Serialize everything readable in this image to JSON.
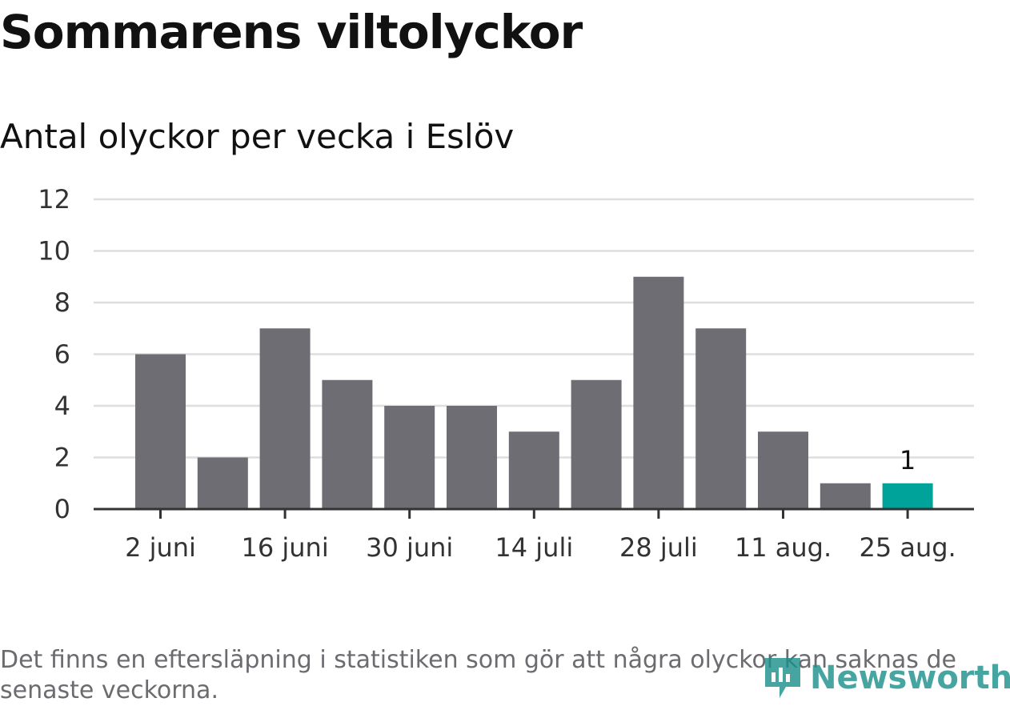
{
  "header": {
    "title": "Sommarens viltolyckor",
    "subtitle": "Antal olyckor per vecka i Eslöv"
  },
  "footer": {
    "note": "Det finns en eftersläpning i statistiken som gör att några olyckor kan saknas de senaste veckorna.",
    "logo_text": "Newsworthy",
    "logo_icon": "newsworthy-logo-icon"
  },
  "chart_data": {
    "type": "bar",
    "title": "Antal olyckor per vecka i Eslöv",
    "xlabel": "",
    "ylabel": "",
    "ylim": [
      0,
      12
    ],
    "yticks": [
      "0",
      "2",
      "4",
      "6",
      "8",
      "10",
      "12"
    ],
    "grid": true,
    "xtick_labels": [
      "2 juni",
      "16 juni",
      "30 juni",
      "14 juli",
      "28 juli",
      "11 aug.",
      "25 aug."
    ],
    "xtick_every": 2,
    "values": [
      6,
      2,
      7,
      5,
      4,
      4,
      3,
      5,
      9,
      7,
      3,
      1,
      1
    ],
    "highlight_index": 12,
    "data_labels": [
      {
        "index": 12,
        "text": "1"
      }
    ],
    "colors": {
      "bar": "#6e6d73",
      "highlight": "#00a39a",
      "grid": "#dedede",
      "axis": "#333333",
      "tick_text": "#333333"
    }
  }
}
